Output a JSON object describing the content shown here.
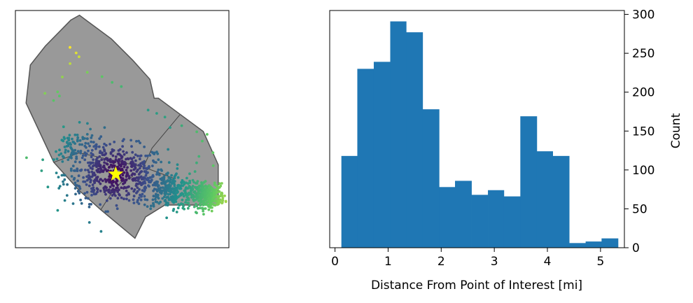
{
  "chart_data": [
    {
      "type": "scatter",
      "title": "",
      "xlabel": "",
      "ylabel": "",
      "x_ticks": [],
      "y_ticks": [],
      "colormap": "viridis",
      "colormap_stops": [
        "#440154",
        "#3b528b",
        "#21918c",
        "#5ec962",
        "#fde725"
      ],
      "region_fill": "#999999",
      "region_edge": "#555555",
      "marker": {
        "shape": "star",
        "color": "#ffff00"
      },
      "clusters": [
        {
          "name": "",
          "cx": 0.47,
          "cy": 0.31,
          "sx": 0.12,
          "sy": 0.06,
          "n": 560
        },
        {
          "name": "",
          "cx": 0.72,
          "cy": 0.24,
          "sx": 0.06,
          "sy": 0.04,
          "n": 260
        },
        {
          "name": "",
          "cx": 0.9,
          "cy": 0.22,
          "sx": 0.04,
          "sy": 0.025,
          "n": 330
        },
        {
          "name": "",
          "cx": 0.28,
          "cy": 0.42,
          "sx": 0.05,
          "sy": 0.04,
          "n": 90
        }
      ],
      "poi": {
        "x": 0.47,
        "y": 0.31
      }
    },
    {
      "type": "bar",
      "title": "",
      "xlabel": "Distance From Point of Interest [mi]",
      "ylabel": "Count",
      "xlim": [
        -0.1,
        5.45
      ],
      "ylim": [
        0,
        305
      ],
      "x_ticks": [
        0,
        1,
        2,
        3,
        4,
        5
      ],
      "y_ticks": [
        0,
        50,
        100,
        150,
        200,
        250,
        300
      ],
      "bar_color": "#1f77b4",
      "bin_edges": [
        0.12,
        0.42,
        0.73,
        1.04,
        1.34,
        1.65,
        1.96,
        2.26,
        2.57,
        2.88,
        3.18,
        3.49,
        3.8,
        4.1,
        4.41,
        4.72,
        5.02,
        5.33
      ],
      "values": [
        118,
        230,
        239,
        291,
        277,
        178,
        78,
        86,
        68,
        74,
        66,
        169,
        124,
        118,
        6,
        8,
        12
      ]
    }
  ]
}
